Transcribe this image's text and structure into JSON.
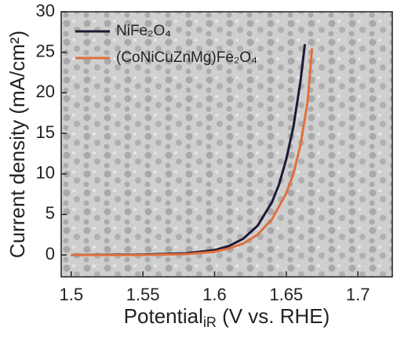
{
  "chart_data": {
    "type": "line",
    "x_label": "Potential",
    "x_label_subscript": "iR",
    "x_label_suffix": " (V vs. RHE)",
    "y_label": "Current density (mA/cm²)",
    "xlim": [
      1.493,
      1.724
    ],
    "xticks": [
      1.5,
      1.55,
      1.6,
      1.65,
      1.7
    ],
    "ylim": [
      -2.7,
      30
    ],
    "yticks": [
      0,
      5,
      10,
      15,
      20,
      25,
      30
    ],
    "legend": "upper left",
    "series": [
      {
        "name": "NiFe₂O₄",
        "color": "#1c1a36",
        "x": [
          1.5,
          1.55,
          1.58,
          1.6,
          1.61,
          1.62,
          1.63,
          1.64,
          1.645,
          1.65,
          1.655,
          1.66,
          1.663
        ],
        "values": [
          0,
          0.05,
          0.2,
          0.6,
          1.1,
          2.0,
          3.6,
          6.5,
          8.7,
          11.8,
          15.8,
          21.5,
          26
        ]
      },
      {
        "name": "(CoNiCuZnMg)Fe₂O₄",
        "color": "#e0703c",
        "x": [
          1.5,
          1.55,
          1.58,
          1.6,
          1.61,
          1.62,
          1.63,
          1.64,
          1.65,
          1.655,
          1.66,
          1.665,
          1.668
        ],
        "values": [
          0,
          0,
          0.1,
          0.4,
          0.8,
          1.4,
          2.5,
          4.4,
          7.6,
          10,
          13.6,
          19,
          25.5
        ]
      }
    ]
  }
}
